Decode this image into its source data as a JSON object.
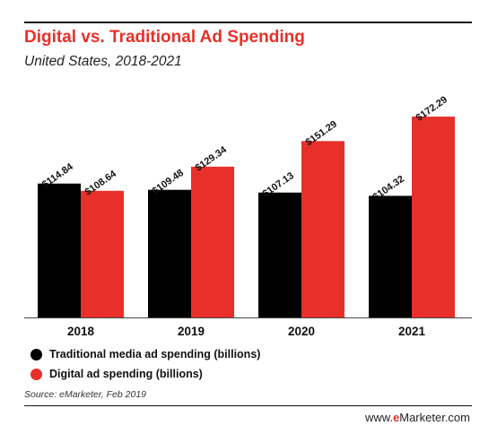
{
  "header": {
    "title": "Digital vs. Traditional Ad Spending",
    "subtitle": "United States, 2018-2021"
  },
  "footer": {
    "source": "Source: eMarketer, Feb 2019",
    "brand_prefix": "www.",
    "brand_e": "e",
    "brand_rest": "Marketer.com"
  },
  "colors": {
    "traditional": "#000000",
    "digital": "#e8302a",
    "title": "#e8302a"
  },
  "chart_data": {
    "type": "bar",
    "title": "Digital vs. Traditional Ad Spending",
    "subtitle": "United States, 2018-2021",
    "categories": [
      "2018",
      "2019",
      "2020",
      "2021"
    ],
    "series": [
      {
        "name": "Traditional media ad spending (billions)",
        "color": "#000000",
        "values": [
          114.84,
          109.48,
          107.13,
          104.32
        ],
        "labels": [
          "$114.84",
          "$109.48",
          "$107.13",
          "$104.32"
        ]
      },
      {
        "name": "Digital ad spending (billions)",
        "color": "#e8302a",
        "values": [
          108.64,
          129.34,
          151.29,
          172.29
        ],
        "labels": [
          "$108.64",
          "$129.34",
          "$151.29",
          "$172.29"
        ]
      }
    ],
    "legend": "bottom-left",
    "grid": false,
    "axes_visible": false
  }
}
